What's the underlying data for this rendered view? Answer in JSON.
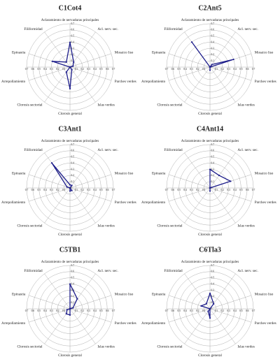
{
  "chart_data": [
    {
      "type": "radar",
      "title": "C1Cot4",
      "color": "#1c1c8a",
      "rlim": [
        0,
        0.7
      ],
      "rticks": [
        0,
        0.1,
        0.2,
        0.3,
        0.4,
        0.5,
        0.6,
        0.7
      ],
      "grid": true,
      "categories": [
        "Aclaramiento de nervaduras principales",
        "Acl. nerv. sec.",
        "Mosaico liso",
        "Parches verdes",
        "Islas verdes",
        "Clorosis general",
        "Clorosis sectorial",
        "Arrepollamiento",
        "Epinastia",
        "Filiformidad"
      ],
      "values": [
        0.4,
        0.1,
        0.05,
        0,
        0.05,
        0.35,
        0.1,
        0,
        0.3,
        0.1
      ]
    },
    {
      "type": "radar",
      "title": "C2Ant5",
      "color": "#1c1c8a",
      "rlim": [
        0,
        0.7
      ],
      "rticks": [
        0,
        0.1,
        0.2,
        0.3,
        0.4,
        0.5,
        0.6,
        0.7
      ],
      "grid": true,
      "categories": [
        "Aclaramiento de nervaduras principales",
        "Acl. nerv. sec.",
        "Mosaico liso",
        "Parches verdes",
        "Islas verdes",
        "Clorosis general",
        "Clorosis sectorial",
        "Arrepollamiento",
        "Epinastia",
        "Filiformidad"
      ],
      "values": [
        0,
        0.05,
        0.4,
        0,
        0,
        0.05,
        0,
        0,
        0,
        0.5
      ]
    },
    {
      "type": "radar",
      "title": "C3Ant1",
      "color": "#1c1c8a",
      "rlim": [
        0,
        0.7
      ],
      "rticks": [
        0,
        0.1,
        0.2,
        0.3,
        0.4,
        0.5,
        0.6,
        0.7
      ],
      "grid": true,
      "categories": [
        "Aclaramiento de nervaduras principales",
        "Acl. nerv. sec.",
        "Mosaico liso",
        "Parches verdes",
        "Islas verdes",
        "Clorosis general",
        "Clorosis sectorial",
        "Arrepollamiento",
        "Epinastia",
        "Filiformidad"
      ],
      "values": [
        0.05,
        0.05,
        0,
        0,
        0.05,
        0.05,
        0,
        0,
        0.05,
        0.5
      ]
    },
    {
      "type": "radar",
      "title": "C4Ant14",
      "color": "#1c1c8a",
      "rlim": [
        0,
        0.7
      ],
      "rticks": [
        0,
        0.1,
        0.2,
        0.3,
        0.4,
        0.5,
        0.6,
        0.7
      ],
      "grid": true,
      "categories": [
        "Aclaramiento de nervaduras principales",
        "Acl. nerv. sec.",
        "Mosaico liso",
        "Parches verdes",
        "Islas verdes",
        "Clorosis general",
        "Clorosis sectorial",
        "Arrepollamiento",
        "Epinastia",
        "Filiformidad"
      ],
      "values": [
        0.3,
        0.25,
        0.35,
        0,
        0,
        0.05,
        0,
        0,
        0,
        0
      ]
    },
    {
      "type": "radar",
      "title": "C5TB1",
      "color": "#1c1c8a",
      "rlim": [
        0,
        0.7
      ],
      "rticks": [
        0,
        0.1,
        0.2,
        0.3,
        0.4,
        0.5,
        0.6,
        0.7
      ],
      "grid": true,
      "categories": [
        "Aclaramiento de nervaduras principales",
        "Acl. nerv. sec.",
        "Mosaico liso",
        "Parches verdes",
        "Islas verdes",
        "Clorosis general",
        "Clorosis sectorial",
        "Arrepollamiento",
        "Epinastia",
        "Filiformidad"
      ],
      "values": [
        0.4,
        0.2,
        0.05,
        0,
        0,
        0.1,
        0.1,
        0.05,
        0,
        0
      ]
    },
    {
      "type": "radar",
      "title": "C6Tla3",
      "color": "#1c1c8a",
      "rlim": [
        0,
        0.7
      ],
      "rticks": [
        0,
        0.1,
        0.2,
        0.3,
        0.4,
        0.5,
        0.6,
        0.7
      ],
      "grid": true,
      "categories": [
        "Aclaramiento de nervaduras principales",
        "Acl. nerv. sec.",
        "Mosaico liso",
        "Parches verdes",
        "Islas verdes",
        "Clorosis general",
        "Clorosis sectorial",
        "Arrepollamiento",
        "Epinastia",
        "Filiformidad"
      ],
      "values": [
        0.25,
        0.1,
        0,
        0,
        0,
        0.15,
        0.05,
        0,
        0.15,
        0.1
      ]
    }
  ]
}
